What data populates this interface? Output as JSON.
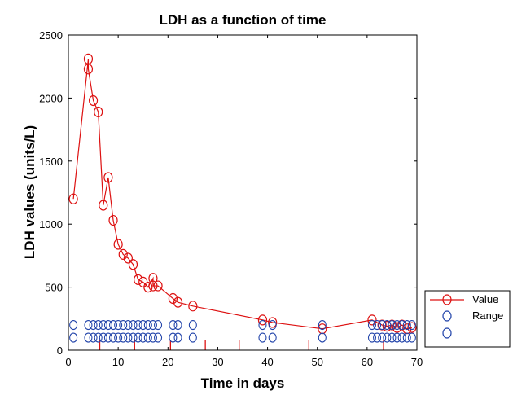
{
  "chart_data": {
    "type": "line",
    "title": "LDH as a function of time",
    "xlabel": "Time in days",
    "ylabel": "LDH values (units/L)",
    "xlim": [
      0,
      70
    ],
    "ylim": [
      0,
      2500
    ],
    "x_ticks": [
      0,
      10,
      20,
      30,
      40,
      50,
      60,
      70
    ],
    "y_ticks": [
      0,
      500,
      1000,
      1500,
      2000,
      2500
    ],
    "grid": false,
    "legend_position": "outside-bottom-right",
    "series": [
      {
        "name": "Value",
        "color": "#dd1111",
        "marker": "circle",
        "x": [
          1,
          4,
          4,
          5,
          6,
          7,
          8,
          9,
          10,
          11,
          12,
          13,
          14,
          15,
          16,
          17,
          17,
          18,
          21,
          22,
          25,
          39,
          41,
          51,
          61,
          63,
          64,
          65,
          66,
          67,
          68,
          69
        ],
        "y": [
          1200,
          2310,
          2230,
          1980,
          1890,
          1150,
          1370,
          1030,
          840,
          760,
          730,
          680,
          560,
          540,
          500,
          570,
          510,
          510,
          410,
          380,
          350,
          240,
          220,
          170,
          240,
          200,
          190,
          200,
          180,
          200,
          170,
          180
        ]
      },
      {
        "name": "Range",
        "color": "#2244aa",
        "marker": "circle",
        "x": [
          1,
          4,
          5,
          6,
          7,
          8,
          9,
          10,
          11,
          12,
          13,
          14,
          15,
          16,
          17,
          18,
          21,
          22,
          25,
          39,
          41,
          51,
          61,
          62,
          63,
          64,
          65,
          66,
          67,
          68,
          69
        ],
        "y": [
          200,
          200,
          200,
          200,
          200,
          200,
          200,
          200,
          200,
          200,
          200,
          200,
          200,
          200,
          200,
          200,
          200,
          200,
          200,
          200,
          200,
          200,
          200,
          200,
          200,
          200,
          200,
          200,
          200,
          200,
          200
        ]
      },
      {
        "name": "",
        "color": "#2244aa",
        "marker": "circle",
        "x": [
          1,
          4,
          5,
          6,
          7,
          8,
          9,
          10,
          11,
          12,
          13,
          14,
          15,
          16,
          17,
          18,
          21,
          22,
          25,
          39,
          41,
          51,
          61,
          62,
          63,
          64,
          65,
          66,
          67,
          68,
          69
        ],
        "y": [
          100,
          100,
          100,
          100,
          100,
          100,
          100,
          100,
          100,
          100,
          100,
          100,
          100,
          100,
          100,
          100,
          100,
          100,
          100,
          100,
          100,
          100,
          100,
          100,
          100,
          100,
          100,
          100,
          100,
          100,
          100
        ]
      }
    ],
    "event_markers": {
      "color": "#dd1111",
      "x": [
        6.3,
        13.3,
        20.5,
        27.5,
        34.3,
        48.3,
        63.3
      ]
    }
  }
}
